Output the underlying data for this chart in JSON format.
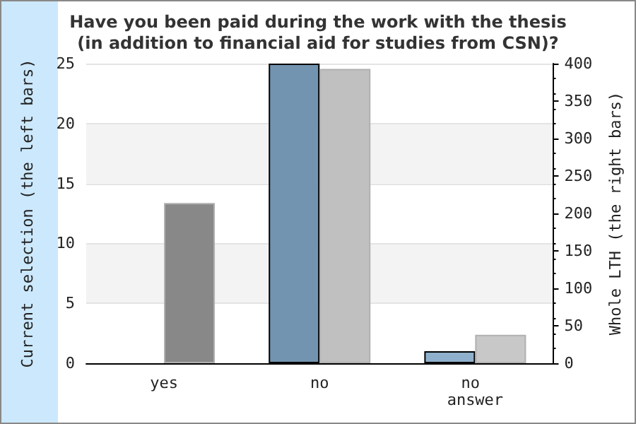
{
  "chart_data": {
    "type": "bar",
    "title": "Have you been paid during the work with the thesis\n(in addition to financial aid for studies from CSN)?",
    "ylabel": "Current selection (the left bars)",
    "y2label": "Whole LTH (the right bars)",
    "categories": [
      "yes",
      "no",
      "no answer"
    ],
    "series": [
      {
        "values": [
          0,
          25,
          1
        ],
        "colors": [
          "#7294b0",
          "#7294b0",
          "#8fb0cc"
        ]
      },
      {
        "values": [
          214,
          393,
          38
        ],
        "colors": [
          "#888888",
          "#c0c0c0",
          "#c8c8c8"
        ],
        "axis": "y2"
      }
    ],
    "ylim": [
      0,
      25
    ],
    "yticks": [
      0,
      5,
      10,
      15,
      20,
      25
    ],
    "y2lim": [
      0,
      400
    ],
    "y2ticks": [
      0,
      50,
      100,
      150,
      200,
      250,
      300,
      350,
      400
    ],
    "grid": "y"
  }
}
